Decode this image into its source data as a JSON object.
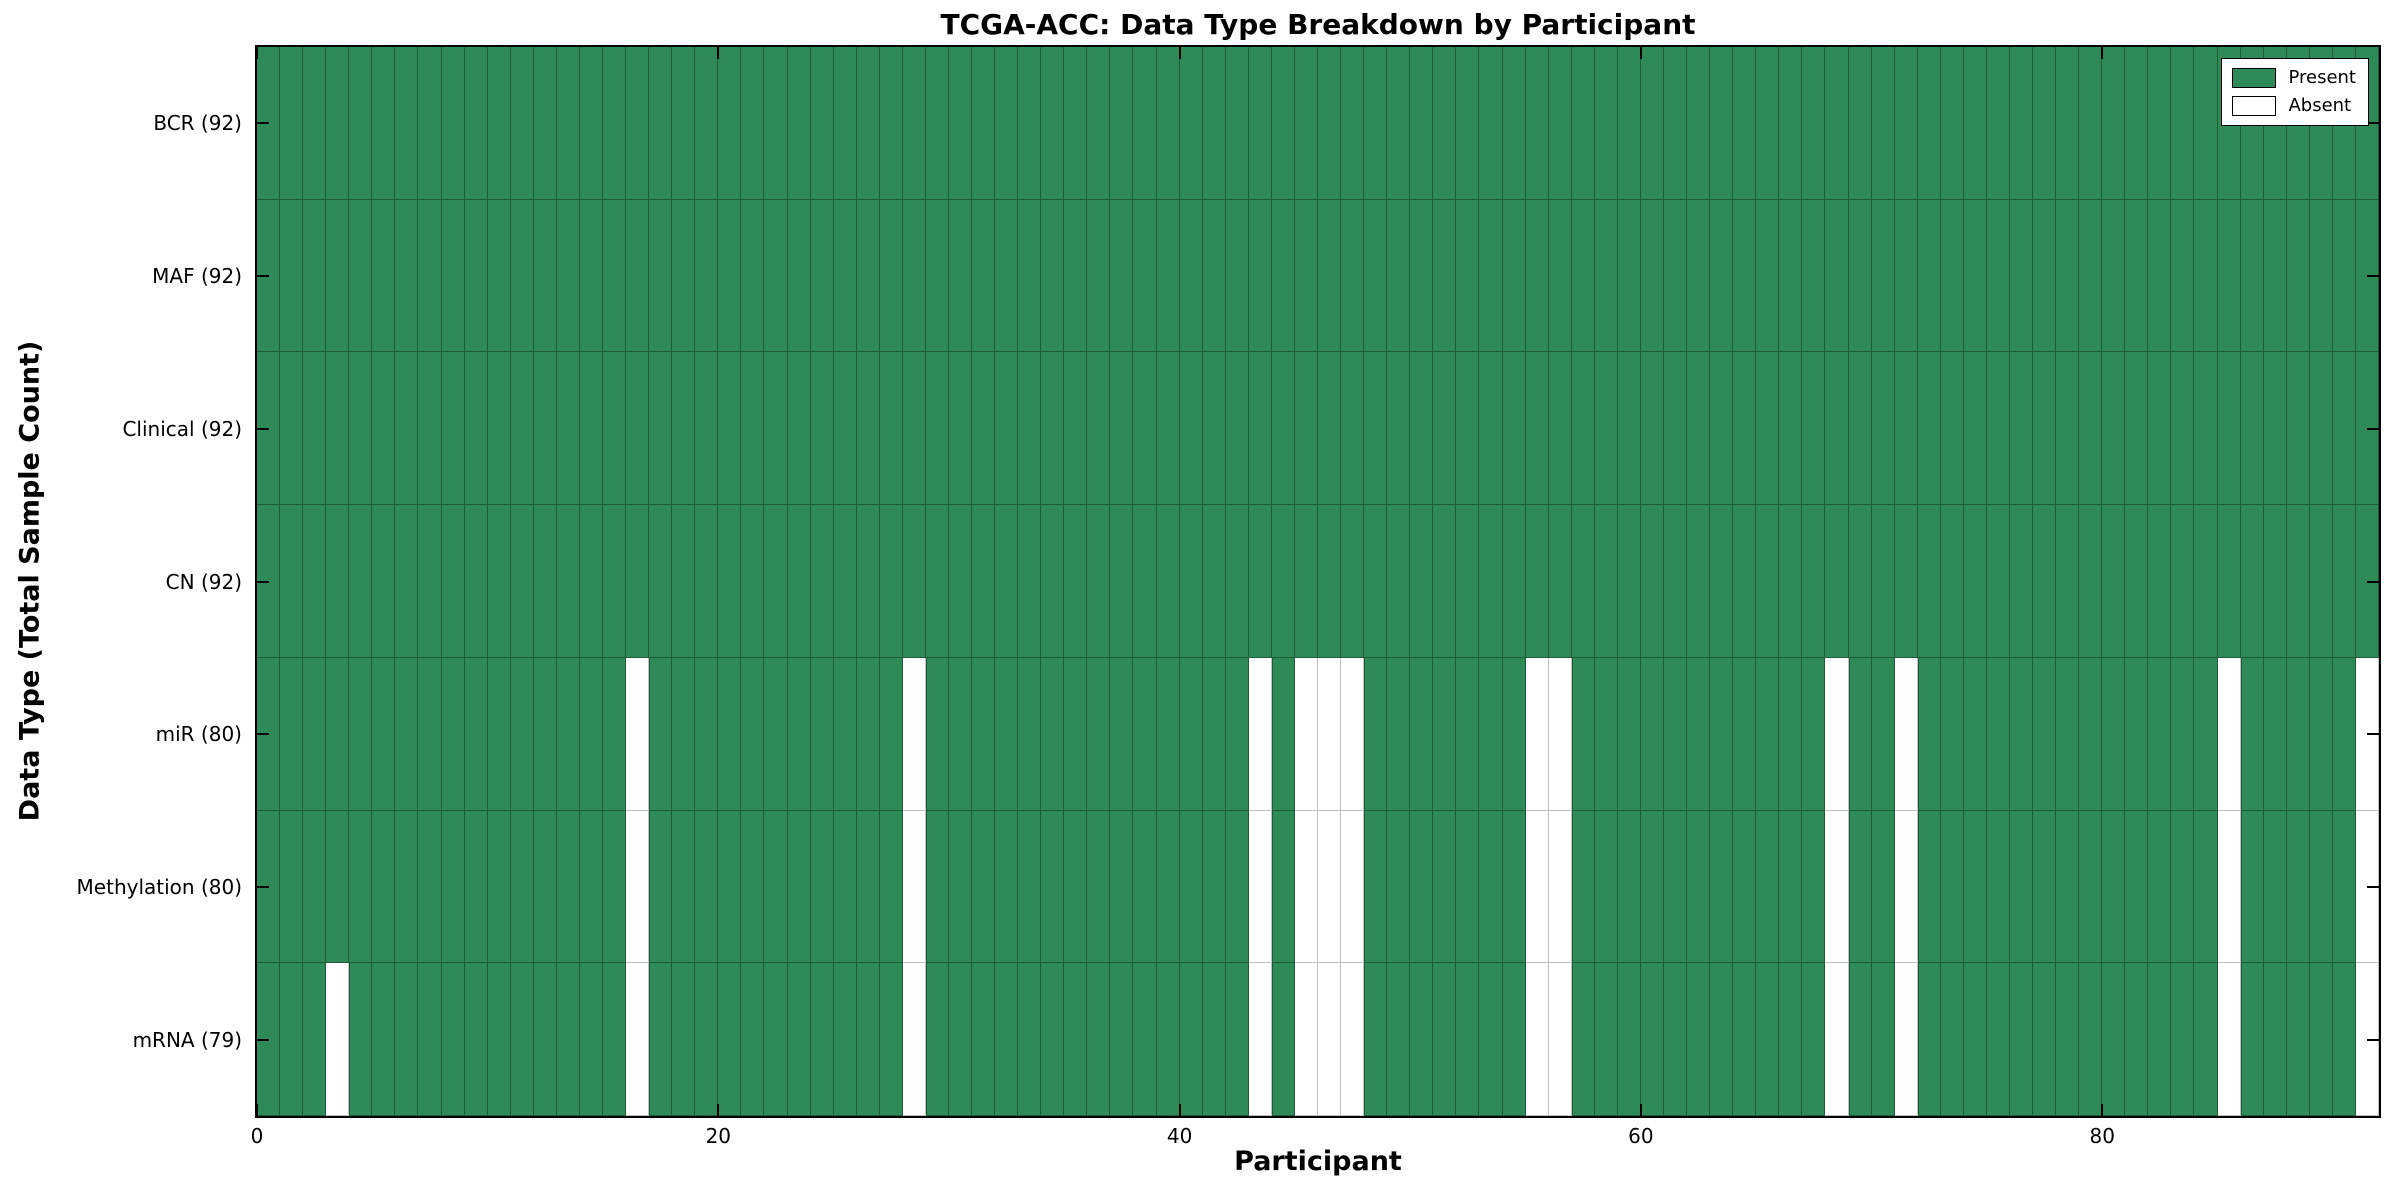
{
  "figure": {
    "title": "TCGA-ACC: Data Type Breakdown by Participant",
    "xlabel": "Participant",
    "ylabel": "Data Type (Total Sample Count)"
  },
  "chart_data": {
    "type": "heatmap",
    "title": "TCGA-ACC: Data Type Breakdown by Participant",
    "xlabel": "Participant",
    "ylabel": "Data Type (Total Sample Count)",
    "n_participants": 92,
    "x_range": [
      0,
      92
    ],
    "x_ticks": [
      "0",
      "20",
      "40",
      "60",
      "80"
    ],
    "x_tick_values": [
      0,
      20,
      40,
      60,
      80
    ],
    "grid": "cell-borders",
    "rows": [
      {
        "data_type": "BCR",
        "label": "BCR (92)",
        "total": 92,
        "absent_participants": []
      },
      {
        "data_type": "MAF",
        "label": "MAF (92)",
        "total": 92,
        "absent_participants": []
      },
      {
        "data_type": "Clinical",
        "label": "Clinical (92)",
        "total": 92,
        "absent_participants": []
      },
      {
        "data_type": "CN",
        "label": "CN (92)",
        "total": 92,
        "absent_participants": []
      },
      {
        "data_type": "miR",
        "label": "miR (80)",
        "total": 80,
        "absent_participants": [
          16,
          28,
          43,
          45,
          46,
          47,
          55,
          56,
          68,
          71,
          85,
          91
        ]
      },
      {
        "data_type": "Methylation",
        "label": "Methylation (80)",
        "total": 80,
        "absent_participants": [
          16,
          28,
          43,
          45,
          46,
          47,
          55,
          56,
          68,
          71,
          85,
          91
        ]
      },
      {
        "data_type": "mRNA",
        "label": "mRNA (79)",
        "total": 79,
        "absent_participants": [
          3,
          16,
          28,
          43,
          45,
          46,
          47,
          55,
          56,
          68,
          71,
          85,
          91
        ]
      }
    ],
    "legend": {
      "position": "upper right",
      "entries": [
        {
          "label": "Present",
          "color": "#2e8b57"
        },
        {
          "label": "Absent",
          "color": "#ffffff"
        }
      ]
    },
    "colors": {
      "present": "#2e8b57",
      "absent": "#ffffff",
      "grid_on_present": "#1d5c39",
      "grid_on_absent": "#c0c0c0",
      "spine": "#000000",
      "text": "#000000"
    }
  }
}
